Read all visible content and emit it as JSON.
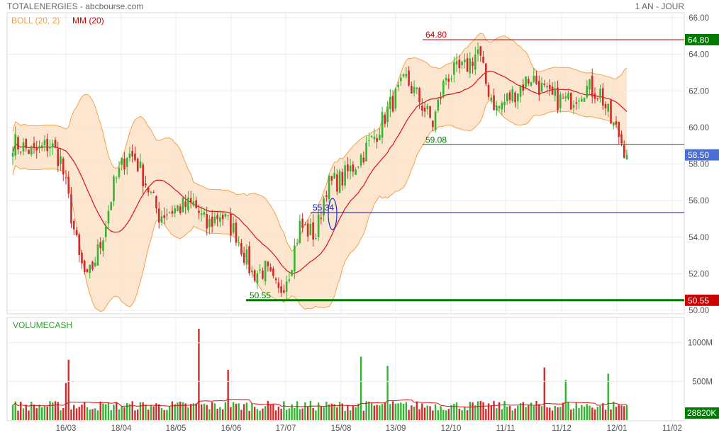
{
  "header": {
    "title": "TOTALENERGIES - abcbourse.com",
    "period": "1 AN - JOUR"
  },
  "legend": {
    "boll": "BOLL (20, 2)",
    "mm": "MM (20)",
    "volume": "VOLUMECASH"
  },
  "colors": {
    "up": "#33b533",
    "down": "#d22b2b",
    "boll_line": "#f5a24a",
    "boll_fill": "#fde2c8",
    "mm_line": "#dd1111",
    "resistance": "#cc0000",
    "support": "#007a00",
    "blue_level": "#101080",
    "tag_last": "#4a6fd6",
    "tag_high": "#007a00",
    "tag_low": "#cc0000",
    "tag_volume": "#007a00"
  },
  "chart_data": {
    "type": "candlestick",
    "price_axis": {
      "min": 50,
      "max": 66,
      "ticks": [
        "66.00",
        "64.00",
        "62.00",
        "60.00",
        "58.00",
        "56.00",
        "54.00",
        "52.00",
        "50.00"
      ]
    },
    "volume_axis": {
      "ticks": [
        "1000M",
        "500M"
      ]
    },
    "date_labels": [
      "16/03",
      "18/04",
      "18/05",
      "16/06",
      "17/07",
      "15/08",
      "13/09",
      "12/10",
      "11/11",
      "11/12",
      "12/01",
      "11/02"
    ],
    "levels": {
      "high": {
        "value": 64.8,
        "label": "64.80",
        "tag": "64.80"
      },
      "mid": {
        "value": 59.08,
        "label": "59.08"
      },
      "blue": {
        "value": 55.34,
        "label": "55.34"
      },
      "low": {
        "value": 50.55,
        "label": "50.55",
        "tag": "50.55"
      },
      "last": {
        "value": 58.5,
        "tag": "58.50"
      }
    },
    "volume_tag": "28820K",
    "close_keypoints": [
      {
        "d": 0,
        "v": 59.2
      },
      {
        "d": 8,
        "v": 58.6
      },
      {
        "d": 14,
        "v": 59.1
      },
      {
        "d": 18,
        "v": 58.2
      },
      {
        "d": 21,
        "v": 56.0
      },
      {
        "d": 25,
        "v": 52.8
      },
      {
        "d": 28,
        "v": 51.6
      },
      {
        "d": 33,
        "v": 53.6
      },
      {
        "d": 38,
        "v": 56.8
      },
      {
        "d": 43,
        "v": 58.6
      },
      {
        "d": 46,
        "v": 58.3
      },
      {
        "d": 50,
        "v": 57.0
      },
      {
        "d": 55,
        "v": 55.2
      },
      {
        "d": 62,
        "v": 55.6
      },
      {
        "d": 68,
        "v": 55.8
      },
      {
        "d": 73,
        "v": 54.6
      },
      {
        "d": 78,
        "v": 55.3
      },
      {
        "d": 84,
        "v": 54.2
      },
      {
        "d": 90,
        "v": 52.0
      },
      {
        "d": 95,
        "v": 52.2
      },
      {
        "d": 100,
        "v": 50.9
      },
      {
        "d": 104,
        "v": 52.2
      },
      {
        "d": 108,
        "v": 54.6
      },
      {
        "d": 114,
        "v": 54.1
      },
      {
        "d": 118,
        "v": 56.8
      },
      {
        "d": 124,
        "v": 57.2
      },
      {
        "d": 130,
        "v": 58.2
      },
      {
        "d": 136,
        "v": 59.5
      },
      {
        "d": 142,
        "v": 61.2
      },
      {
        "d": 148,
        "v": 62.6
      },
      {
        "d": 153,
        "v": 61.5
      },
      {
        "d": 158,
        "v": 60.2
      },
      {
        "d": 163,
        "v": 62.8
      },
      {
        "d": 170,
        "v": 63.2
      },
      {
        "d": 175,
        "v": 64.2
      },
      {
        "d": 178,
        "v": 62.4
      },
      {
        "d": 182,
        "v": 61.0
      },
      {
        "d": 188,
        "v": 61.8
      },
      {
        "d": 195,
        "v": 62.8
      },
      {
        "d": 202,
        "v": 61.6
      },
      {
        "d": 209,
        "v": 61.4
      },
      {
        "d": 215,
        "v": 62.2
      },
      {
        "d": 221,
        "v": 61.9
      },
      {
        "d": 225,
        "v": 60.3
      },
      {
        "d": 228,
        "v": 59.6
      },
      {
        "d": 231,
        "v": 58.5
      }
    ],
    "volume_spikes": [
      {
        "d": 21,
        "v": 780
      },
      {
        "d": 20,
        "v": 480
      },
      {
        "d": 70,
        "v": 1180
      },
      {
        "d": 81,
        "v": 650
      },
      {
        "d": 131,
        "v": 820
      },
      {
        "d": 141,
        "v": 700
      },
      {
        "d": 200,
        "v": 680
      },
      {
        "d": 208,
        "v": 520
      },
      {
        "d": 224,
        "v": 600
      }
    ]
  }
}
